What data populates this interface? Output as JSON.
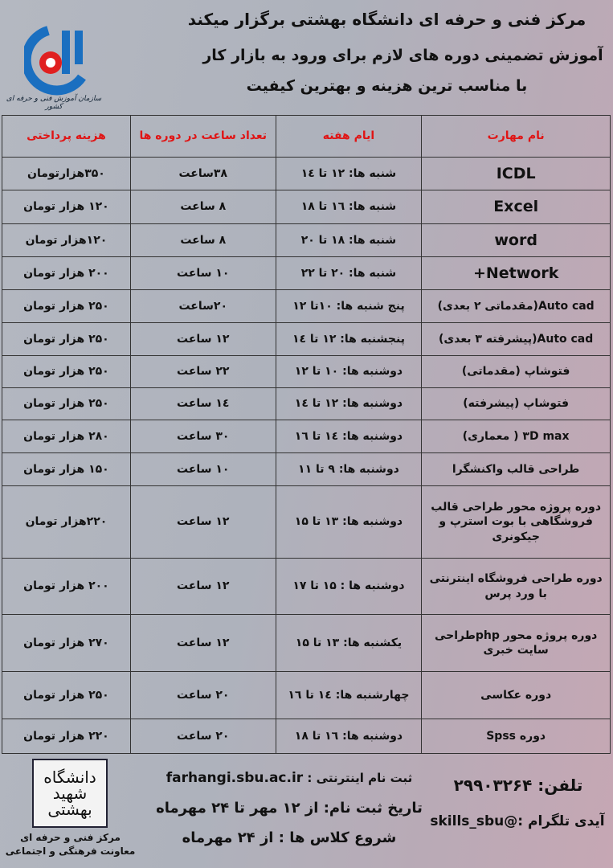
{
  "header": {
    "line1": "مرکز فنی و حرفه ای دانشگاه بهشتی برگزار میکند",
    "line2": "آموزش تضمینی دوره های لازم برای ورود به بازار کار",
    "line3": "با مناسب ترین هزینه و بهترین کیفیت"
  },
  "logo": {
    "caption": "سازمان آموزش فنی و حرفه ای کشور",
    "color": "#1a6fc0",
    "accent": "#e02020"
  },
  "table": {
    "columns": [
      "نام مهارت",
      "ایام هفته",
      "تعداد ساعت در دوره ها",
      "هزینه پرداختی"
    ],
    "rows": [
      {
        "name": "ICDL",
        "days": "شنبه ها: ۱۲ تا ۱٤",
        "hours": "۳۸ساعت",
        "cost": "۳۵۰هزارتومان"
      },
      {
        "name": "Excel",
        "days": "شنبه ها: ۱٦ تا ۱۸",
        "hours": "۸ ساعت",
        "cost": "۱۲۰ هزار تومان"
      },
      {
        "name": "word",
        "days": "شنبه ها: ۱۸ تا ۲۰",
        "hours": "۸ ساعت",
        "cost": "۱۲۰هزار تومان"
      },
      {
        "name": "Network+",
        "days": "شنبه ها: ۲۰ تا ۲۲",
        "hours": "۱۰ ساعت",
        "cost": "۲۰۰ هزار تومان"
      },
      {
        "name": "Auto cad(مقدماتی ۲ بعدی)",
        "days": "پنج شنبه ها: ۱۰تا ۱۲",
        "hours": "۲۰ساعت",
        "cost": "۲۵۰ هزار تومان"
      },
      {
        "name": "Auto cad(پیشرفته ۳ بعدی)",
        "days": "پنجشنبه ها: ۱۲ تا ۱٤",
        "hours": "۱۲ ساعت",
        "cost": "۲۵۰ هزار تومان"
      },
      {
        "name": "فتوشاپ (مقدماتی)",
        "days": "دوشنبه ها: ۱۰ تا ۱۲",
        "hours": "۲۲ ساعت",
        "cost": "۲۵۰ هزار تومان"
      },
      {
        "name": "فتوشاپ (پیشرفته)",
        "days": "دوشنبه ها: ۱۲ تا ۱٤",
        "hours": "۱٤ ساعت",
        "cost": "۲۵۰ هزار تومان"
      },
      {
        "name": "۳D max ( معماری)",
        "days": "دوشنبه ها: ۱٤ تا ۱٦",
        "hours": "۳۰ ساعت",
        "cost": "۲۸۰ هزار تومان"
      },
      {
        "name": "طراحی قالب واکنشگرا",
        "days": "دوشنبه ها: ۹ تا ۱۱",
        "hours": "۱۰ ساعت",
        "cost": "۱۵۰ هزار تومان"
      },
      {
        "name": "دوره پروژه محور طراحی قالب فروشگاهی با بوت استرپ و جیکونری",
        "days": "دوشنبه ها: ۱۳ تا ۱۵",
        "hours": "۱۲ ساعت",
        "cost": "۲۲۰هزار تومان"
      },
      {
        "name": "دوره طراحی فروشگاه اینترنتی با ورد پرس",
        "days": "دوشنبه ها : ۱۵ تا ۱۷",
        "hours": "۱۲ ساعت",
        "cost": "۲۰۰ هزار تومان"
      },
      {
        "name": "دوره پروژه محور phpطراحی سایت خبری",
        "days": "یکشنبه ها: ۱۳ تا ۱۵",
        "hours": "۱۲ ساعت",
        "cost": "۲۷۰ هزار تومان"
      },
      {
        "name": "دوره عکاسی",
        "days": "چهارشنبه ها: ۱٤ تا ۱٦",
        "hours": "۲۰ ساعت",
        "cost": "۲۵۰ هزار تومان"
      },
      {
        "name": "دوره Spss",
        "days": "دوشنبه ها: ۱٦ تا ۱۸",
        "hours": "۲۰ ساعت",
        "cost": "۲۲۰ هزار تومان"
      }
    ]
  },
  "footer": {
    "sbu_logo": "دانشگاه شهید بهشتی",
    "sbu_caption1": "مرکز فنی و حرفه ای",
    "sbu_caption2": "معاونت فرهنگی و اجتماعی",
    "register_label": "ثبت نام اینترنتی :",
    "register_url": "farhangi.sbu.ac.ir",
    "reg_dates": "تاریخ ثبت نام: از ۱۲ مهر تا ۲۴ مهرماه",
    "class_start": "شروع کلاس ها : از ۲۴ مهرماه",
    "phone": "تلفن: ۲۹۹۰۳۲۶۴",
    "telegram": "آیدی تلگرام :@skills_sbu"
  }
}
